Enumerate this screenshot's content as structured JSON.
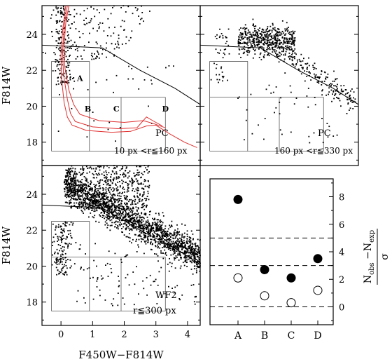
{
  "figure": {
    "y_axis_title": "F814W",
    "x_axis_title": "F450W−F814W",
    "right_axis_title": {
      "prefix": "N",
      "sub1": "obs",
      "minus": " −N",
      "sub2": "exp",
      "denominator": "σ"
    }
  },
  "colors": {
    "points": "#000000",
    "isochrone": "#e03030",
    "frame": "#000000",
    "box_lines": "#555555"
  },
  "chart_data": [
    {
      "id": "cmd_pc_inner",
      "type": "scatter",
      "panel_tag": "PC",
      "note": "10 px <r≦160 px",
      "xlim": [
        -0.6,
        4.4
      ],
      "ylim": [
        25.6,
        16.7
      ],
      "y_ticks": [
        18,
        20,
        22,
        24
      ],
      "x_ticks": [],
      "y_ticks_labeled": true,
      "box_labels": [
        "A",
        "B",
        "C",
        "D"
      ],
      "has_isochrones": true,
      "n_points": 360,
      "population": "inner_pc"
    },
    {
      "id": "cmd_pc_outer",
      "type": "scatter",
      "panel_tag": "PC",
      "note": "160 px <r≦330 px",
      "xlim": [
        -0.6,
        4.4
      ],
      "ylim": [
        25.6,
        16.7
      ],
      "y_ticks": [
        18,
        20,
        22,
        24
      ],
      "x_ticks": [],
      "y_ticks_labeled": false,
      "box_labels": [],
      "has_isochrones": false,
      "n_points": 800,
      "population": "outer_pc"
    },
    {
      "id": "cmd_wf2",
      "type": "scatter",
      "panel_tag": "WF2",
      "note": "r≦300 px",
      "xlim": [
        -0.6,
        4.4
      ],
      "ylim": [
        25.6,
        16.7
      ],
      "y_ticks": [
        18,
        20,
        22,
        24
      ],
      "x_ticks": [
        0,
        1,
        2,
        3,
        4
      ],
      "y_ticks_labeled": true,
      "box_labels": [],
      "has_isochrones": false,
      "n_points": 2600,
      "population": "wf2"
    },
    {
      "id": "excess_significance",
      "type": "scatter",
      "categories": [
        "A",
        "B",
        "C",
        "D"
      ],
      "series": [
        {
          "style": "filled",
          "values": [
            7.8,
            2.7,
            2.1,
            3.5
          ]
        },
        {
          "style": "open",
          "values": [
            2.1,
            0.8,
            0.3,
            1.2
          ]
        }
      ],
      "ylim": [
        -1.3,
        9.3
      ],
      "y_ticks": [
        0,
        2,
        4,
        6,
        8
      ],
      "dashed_levels": [
        0,
        3,
        5
      ]
    }
  ],
  "cmd_common": {
    "box_columns_color": [
      -0.3,
      0.9,
      1.9,
      3.3
    ],
    "box_rows_mag": [
      17.5,
      20.5,
      22.5
    ],
    "completeness_curve": [
      [
        -0.6,
        23.4
      ],
      [
        1.3,
        23.25
      ],
      [
        2.5,
        22.0
      ],
      [
        3.6,
        21.0
      ],
      [
        4.4,
        20.1
      ]
    ]
  }
}
